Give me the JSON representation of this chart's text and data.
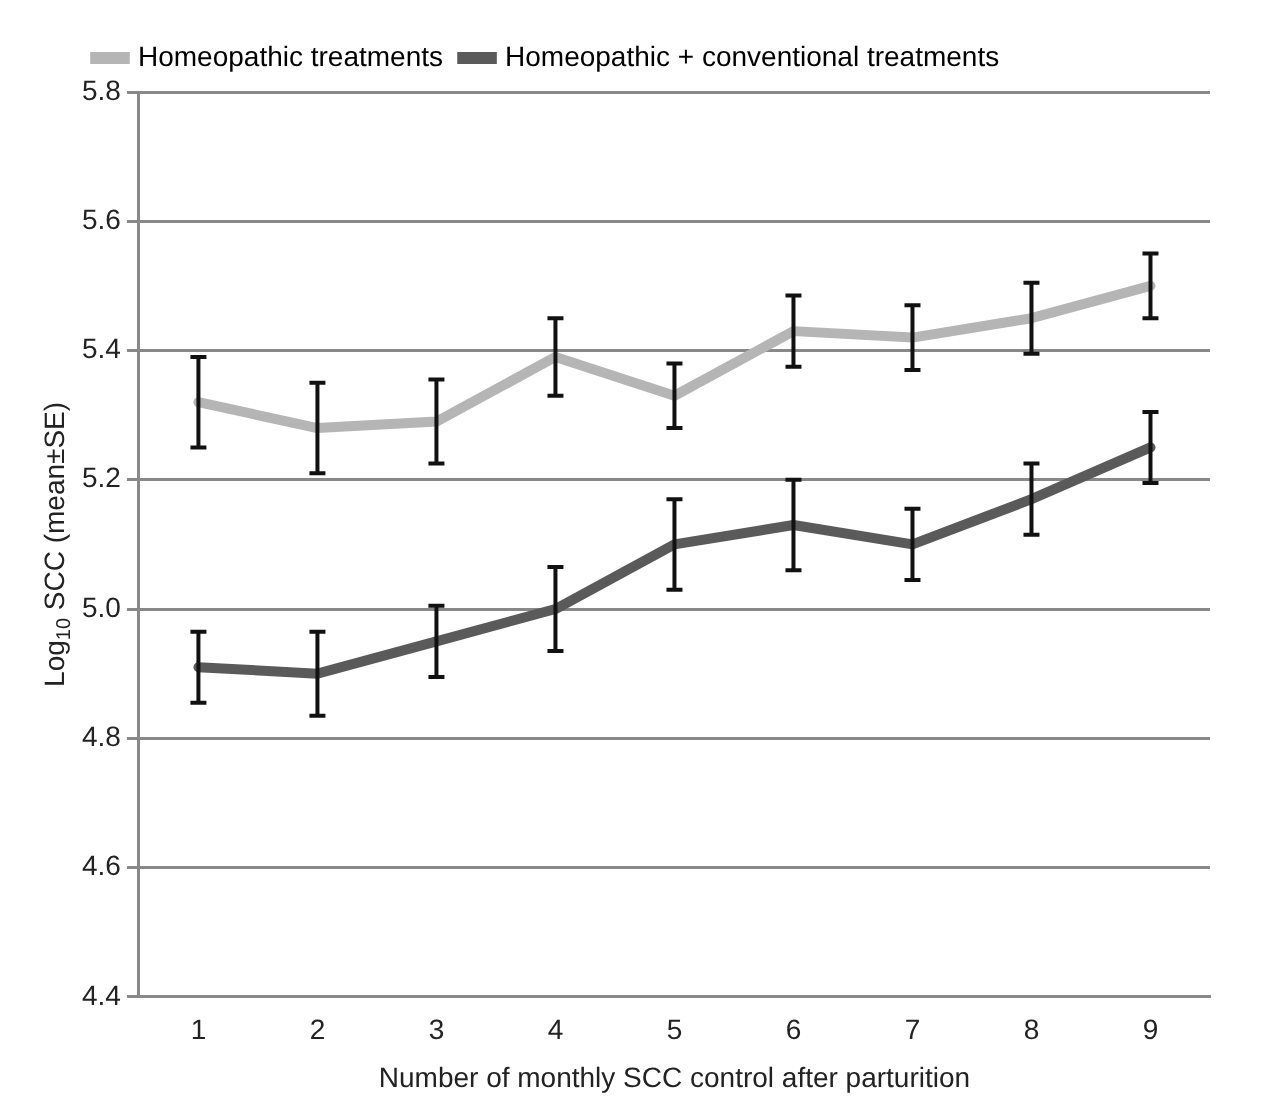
{
  "chart_data": {
    "type": "line",
    "xlabel": "Number of monthly SCC control after parturition",
    "ylabel": "Log$_{10}$ SCC (mean±SE)",
    "categories": [
      "1",
      "2",
      "3",
      "4",
      "5",
      "6",
      "7",
      "8",
      "9"
    ],
    "series": [
      {
        "name": "Homeopathic treatments",
        "color": "#b5b5b5",
        "values": [
          5.32,
          5.28,
          5.29,
          5.39,
          5.33,
          5.43,
          5.42,
          5.45,
          5.5
        ],
        "errors": [
          0.07,
          0.07,
          0.065,
          0.06,
          0.05,
          0.055,
          0.05,
          0.055,
          0.05
        ]
      },
      {
        "name": "Homeopathic + conventional treatments",
        "color": "#5a5a5a",
        "values": [
          4.91,
          4.9,
          4.95,
          5.0,
          5.1,
          5.13,
          5.1,
          5.17,
          5.25
        ],
        "errors": [
          0.055,
          0.065,
          0.055,
          0.065,
          0.07,
          0.07,
          0.055,
          0.055,
          0.055
        ]
      }
    ],
    "ylim": [
      4.4,
      5.8
    ],
    "yticks": [
      4.4,
      4.6,
      4.8,
      {
        "value": 5,
        "label": "5.0"
      },
      5.2,
      5.4,
      5.6,
      5.8
    ],
    "grid": "y",
    "legend": "top",
    "marker": "none",
    "line_style": "solid"
  }
}
